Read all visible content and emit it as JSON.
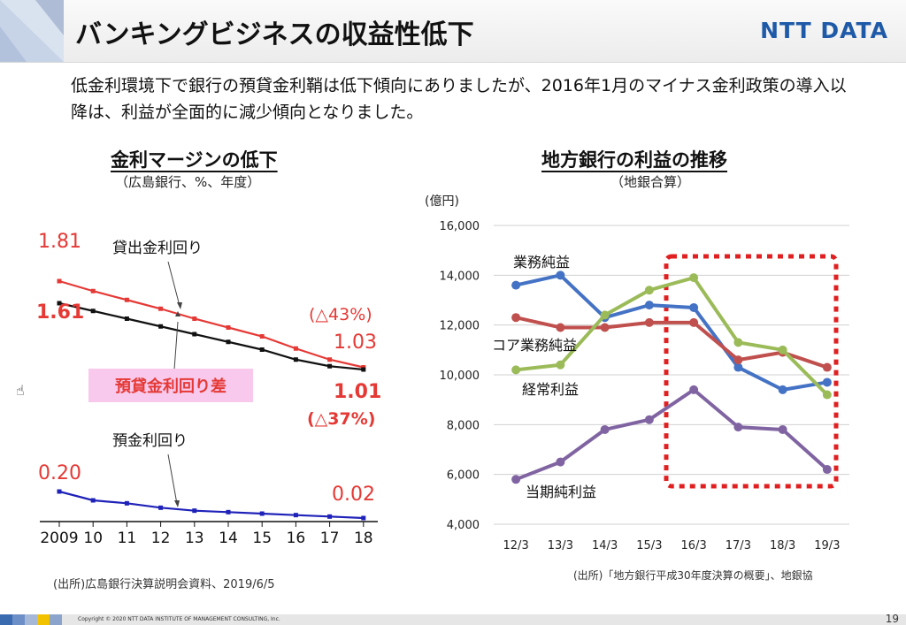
{
  "header": {
    "title": "バンキングビジネスの収益性低下",
    "logo": "NTT DATA"
  },
  "intro": "低金利環境下で銀行の預貸金利鞘は低下傾向にありましたが、2016年1月のマイナス金利政策の導入以降は、利益が全面的に減少傾向となりました。",
  "left_panel": {
    "title": "金利マージンの低下",
    "subtitle": "（広島銀行、%、年度）",
    "source": "(出所)広島銀行決算説明会資料、2019/6/5",
    "labels": {
      "loan_rate": "貸出金利回り",
      "deposit_rate": "預金利回り",
      "spread": "預貸金利回り差",
      "v181": "1.81",
      "v161": "1.61",
      "v103": "1.03",
      "v101": "1.01",
      "v020": "0.20",
      "v002": "0.02",
      "change43": "(△43%)",
      "change37": "(△37%)"
    }
  },
  "right_panel": {
    "title": "地方銀行の利益の推移",
    "subtitle": "（地銀合算）",
    "unit": "(億円)",
    "source": "(出所)「地方銀行平成30年度決算の概要」、地銀協"
  },
  "footer": {
    "copyright": "Copyright © 2020 NTT DATA INSTITUTE OF MANAGEMENT CONSULTING, Inc.",
    "page": "19"
  },
  "chart_data": [
    {
      "type": "line",
      "title": "金利マージンの低下",
      "x": [
        "2009",
        "10",
        "11",
        "12",
        "13",
        "14",
        "15",
        "16",
        "17",
        "18"
      ],
      "series": [
        {
          "name": "貸出金利回り",
          "color": "#e53935",
          "values": [
            1.81,
            1.72,
            1.64,
            1.56,
            1.47,
            1.39,
            1.31,
            1.2,
            1.1,
            1.03
          ]
        },
        {
          "name": "",
          "color": "#111111",
          "values": [
            1.61,
            1.54,
            1.47,
            1.4,
            1.33,
            1.26,
            1.19,
            1.1,
            1.04,
            1.01
          ]
        },
        {
          "name": "預金利回り",
          "color": "#1f22b8",
          "values": [
            0.2,
            0.14,
            0.12,
            0.09,
            0.07,
            0.06,
            0.05,
            0.04,
            0.03,
            0.02
          ]
        }
      ]
    },
    {
      "type": "line",
      "title": "地方銀行の利益の推移",
      "x": [
        "12/3",
        "13/3",
        "14/3",
        "15/3",
        "16/3",
        "17/3",
        "18/3",
        "19/3"
      ],
      "ylim": [
        4000,
        16000
      ],
      "yticks": [
        "4,000",
        "6,000",
        "8,000",
        "10,000",
        "12,000",
        "14,000",
        "16,000"
      ],
      "grid": true,
      "highlight_range": [
        "16/3",
        "19/3"
      ],
      "series": [
        {
          "name": "業務純益",
          "color": "#4472c4",
          "values": [
            13600,
            14000,
            12300,
            12800,
            12700,
            10300,
            9400,
            9700
          ]
        },
        {
          "name": "コア業務純益",
          "color": "#c0504d",
          "values": [
            12300,
            11900,
            11900,
            12100,
            12100,
            10600,
            10900,
            10300
          ]
        },
        {
          "name": "経常利益",
          "color": "#9bbb59",
          "values": [
            10200,
            10400,
            12400,
            13400,
            13900,
            11300,
            11000,
            9200
          ]
        },
        {
          "name": "当期純利益",
          "color": "#8064a2",
          "values": [
            5800,
            6500,
            7800,
            8200,
            9400,
            7900,
            7800,
            6200
          ]
        }
      ]
    }
  ]
}
